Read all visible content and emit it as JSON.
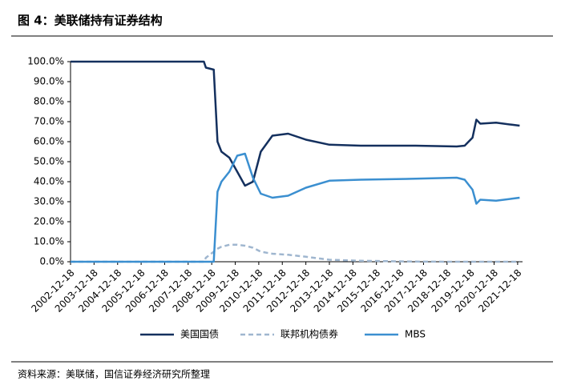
{
  "chart_data": {
    "type": "line",
    "title": "图 4：美联储持有证券结构",
    "source": "资料来源：美联储，国信证券经济研究所整理",
    "x": [
      "2002-12-18",
      "2008-08-18",
      "2008-09-18",
      "2009-01-18",
      "2009-03-18",
      "2009-05-18",
      "2009-09-18",
      "2010-01-18",
      "2010-05-18",
      "2010-09-18",
      "2011-01-18",
      "2011-07-18",
      "2012-03-18",
      "2012-12-18",
      "2013-12-18",
      "2015-04-18",
      "2017-08-18",
      "2019-05-18",
      "2019-09-18",
      "2020-01-18",
      "2020-03-18",
      "2020-05-18",
      "2021-01-18",
      "2021-09-18",
      "2022-01-18"
    ],
    "series": [
      {
        "name": "美国国债",
        "color": "#14305e",
        "values": [
          100,
          100,
          97,
          96,
          60,
          55,
          52,
          45,
          38,
          40,
          55,
          63,
          64,
          61,
          58.5,
          58,
          58,
          57.6,
          58,
          62,
          71,
          69,
          69.5,
          68.5,
          68
        ]
      },
      {
        "name": "联邦机构债券",
        "color": "#9fb6cf",
        "style": "dashed",
        "values": [
          0,
          0,
          2,
          5,
          6.5,
          7.5,
          8.5,
          8.5,
          8,
          7,
          5,
          4,
          3.5,
          2.5,
          1,
          0.5,
          0.1,
          0,
          0,
          0,
          0,
          0,
          0,
          0,
          0
        ]
      },
      {
        "name": "MBS",
        "color": "#3b8fd0",
        "values": [
          0,
          0,
          0,
          0,
          35,
          40,
          45,
          53,
          54,
          42,
          34,
          32,
          33,
          37,
          40.5,
          41,
          41.5,
          42,
          41,
          36,
          29,
          31,
          30.5,
          31.5,
          32
        ]
      }
    ],
    "xlim": [
      "2002-12-18",
      "2022-03-04"
    ],
    "xticks": [
      "2002-12-18",
      "2003-12-18",
      "2004-12-18",
      "2005-12-18",
      "2006-12-18",
      "2007-12-18",
      "2008-12-18",
      "2009-12-18",
      "2010-12-18",
      "2011-12-18",
      "2012-12-18",
      "2013-12-18",
      "2014-12-18",
      "2015-12-18",
      "2016-12-18",
      "2017-12-18",
      "2018-12-18",
      "2019-12-18",
      "2020-12-18",
      "2021-12-18"
    ],
    "ylim": [
      0,
      100
    ],
    "yticks": [
      {
        "value": 0,
        "label": "0.0%"
      },
      {
        "value": 10,
        "label": "10.0%"
      },
      {
        "value": 20,
        "label": "20.0%"
      },
      {
        "value": 30,
        "label": "30.0%"
      },
      {
        "value": 40,
        "label": "40.0%"
      },
      {
        "value": 50,
        "label": "50.0%"
      },
      {
        "value": 60,
        "label": "60.0%"
      },
      {
        "value": 70,
        "label": "70.0%"
      },
      {
        "value": 80,
        "label": "80.0%"
      },
      {
        "value": 90,
        "label": "90.0%"
      },
      {
        "value": 100,
        "label": "100.0%"
      }
    ],
    "legend": "bottom"
  }
}
